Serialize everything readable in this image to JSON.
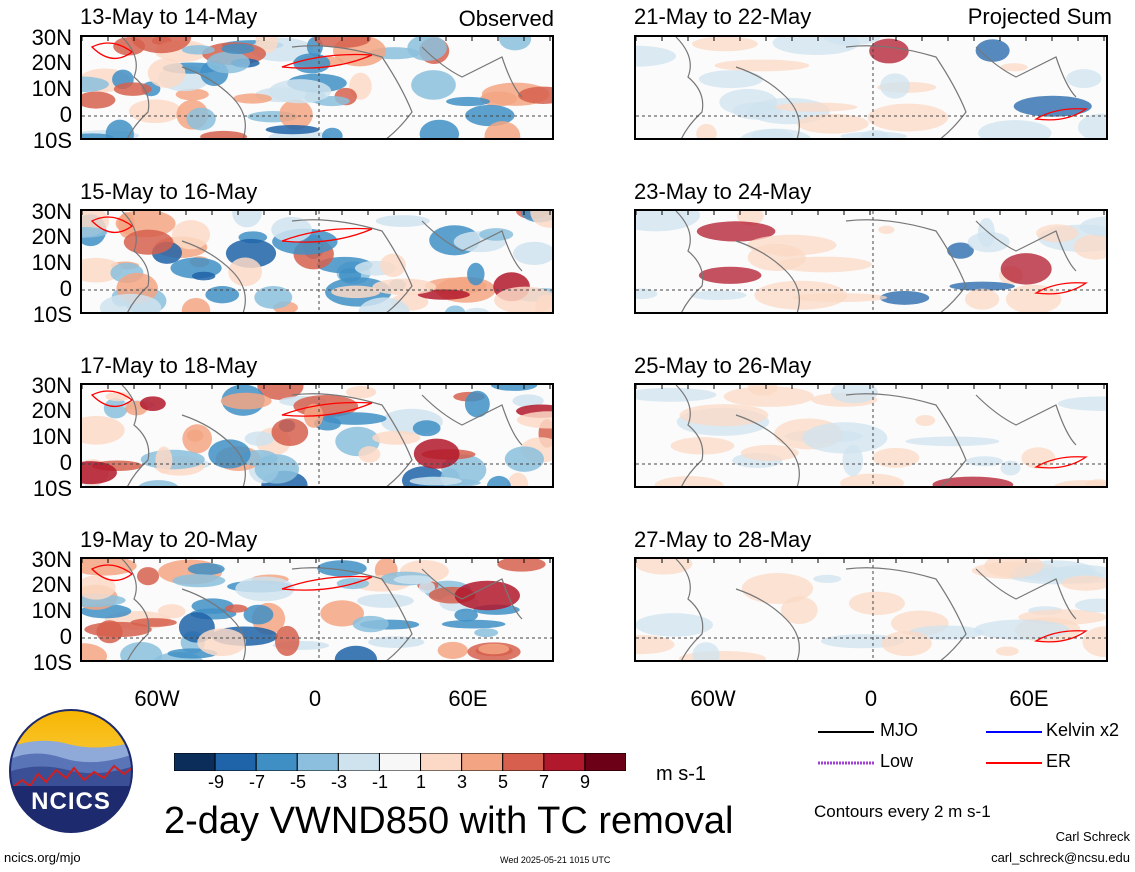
{
  "header": {
    "observed_label": "Observed",
    "projected_label": "Projected Sum"
  },
  "panels": [
    {
      "title": "13-May to 14-May",
      "column": "observed"
    },
    {
      "title": "15-May to 16-May",
      "column": "observed"
    },
    {
      "title": "17-May to 18-May",
      "column": "observed"
    },
    {
      "title": "19-May to 20-May",
      "column": "observed"
    },
    {
      "title": "21-May to 22-May",
      "column": "projected"
    },
    {
      "title": "23-May to 24-May",
      "column": "projected"
    },
    {
      "title": "25-May to 26-May",
      "column": "projected"
    },
    {
      "title": "27-May to 28-May",
      "column": "projected"
    }
  ],
  "lat_labels": [
    "30N",
    "20N",
    "10N",
    "0",
    "10S"
  ],
  "lon_labels": [
    "60W",
    "0",
    "60E"
  ],
  "colorbar": {
    "labels": [
      "-9",
      "-7",
      "-5",
      "-3",
      "-1",
      "1",
      "3",
      "5",
      "7",
      "9"
    ],
    "colors": [
      "#0b2d5a",
      "#1f63a8",
      "#3f8fc5",
      "#8bbfdd",
      "#cfe3ef",
      "#f7f7f7",
      "#fbd9c6",
      "#f3a482",
      "#d6604d",
      "#b2182b",
      "#6b0016"
    ],
    "unit": "m s-1"
  },
  "legend": {
    "items": [
      {
        "label": "MJO",
        "color": "#000000",
        "style": "solid"
      },
      {
        "label": "Kelvin x2",
        "color": "#0000ff",
        "style": "solid"
      },
      {
        "label": "Low",
        "color": "#a040d0",
        "style": "dotted"
      },
      {
        "label": "ER",
        "color": "#ff0000",
        "style": "solid"
      }
    ],
    "contour_note": "Contours every 2 m s-1"
  },
  "logo": {
    "text": "NCICS"
  },
  "title": "2-day VWND850 with TC removal",
  "footer": {
    "url": "ncics.org/mjo",
    "timestamp": "Wed 2025-05-21 1015 UTC",
    "author": "Carl Schreck",
    "email": "carl_schreck@ncsu.edu"
  }
}
